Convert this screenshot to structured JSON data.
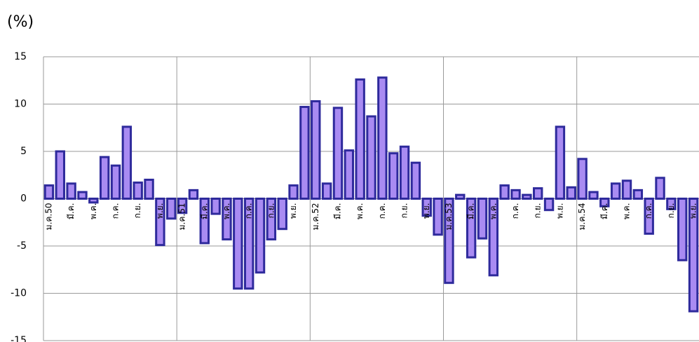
{
  "chart_data": {
    "type": "bar",
    "title": "(%)",
    "categories": [
      "ม.ค.50",
      null,
      "มี.ค.",
      null,
      "พ.ค.",
      null,
      "ก.ค.",
      null,
      "ก.ย.",
      null,
      "พ.ย.",
      null,
      "ม.ค.51",
      null,
      "มี.ค.",
      null,
      "พ.ค.",
      null,
      "ก.ค.",
      null,
      "ก.ย.",
      null,
      "พ.ย.",
      null,
      "ม.ค.52",
      null,
      "มี.ค.",
      null,
      "พ.ค.",
      null,
      "ก.ค.",
      null,
      "ก.ย.",
      null,
      "พ.ย.",
      null,
      "ม.ค.53",
      null,
      "มี.ค.",
      null,
      "พ.ค.",
      null,
      "ก.ค.",
      null,
      "ก.ย.",
      null,
      "พ.ย.",
      null,
      "ม.ค.54",
      null,
      "มี.ค.",
      null,
      "พ.ค.",
      null,
      "ก.ค.",
      null,
      "ก.ย.",
      null,
      "พ.ย."
    ],
    "values": [
      1.4,
      5.0,
      1.6,
      0.7,
      -0.4,
      4.4,
      3.5,
      7.6,
      1.7,
      2.0,
      -4.9,
      -2.1,
      -1.5,
      0.9,
      -4.7,
      -1.6,
      -4.3,
      -9.5,
      -9.5,
      -7.8,
      -4.3,
      -3.2,
      1.4,
      9.7,
      10.3,
      1.6,
      9.6,
      5.1,
      12.6,
      8.7,
      12.8,
      4.8,
      5.5,
      3.8,
      -1.8,
      -3.8,
      -8.9,
      0.4,
      -6.2,
      -4.2,
      -8.1,
      1.4,
      0.9,
      0.4,
      1.1,
      -1.2,
      7.6,
      1.2,
      4.2,
      0.7,
      -0.8,
      1.6,
      1.9,
      0.9,
      -3.7,
      2.2,
      -1.1,
      -6.5,
      -11.9
    ],
    "color": "#a98bf2",
    "edge_color": "#2e2a9c",
    "ylim": [
      -15,
      15
    ],
    "yticks": [
      -15,
      -10,
      -5,
      0,
      5,
      10,
      15
    ],
    "grid": true
  }
}
